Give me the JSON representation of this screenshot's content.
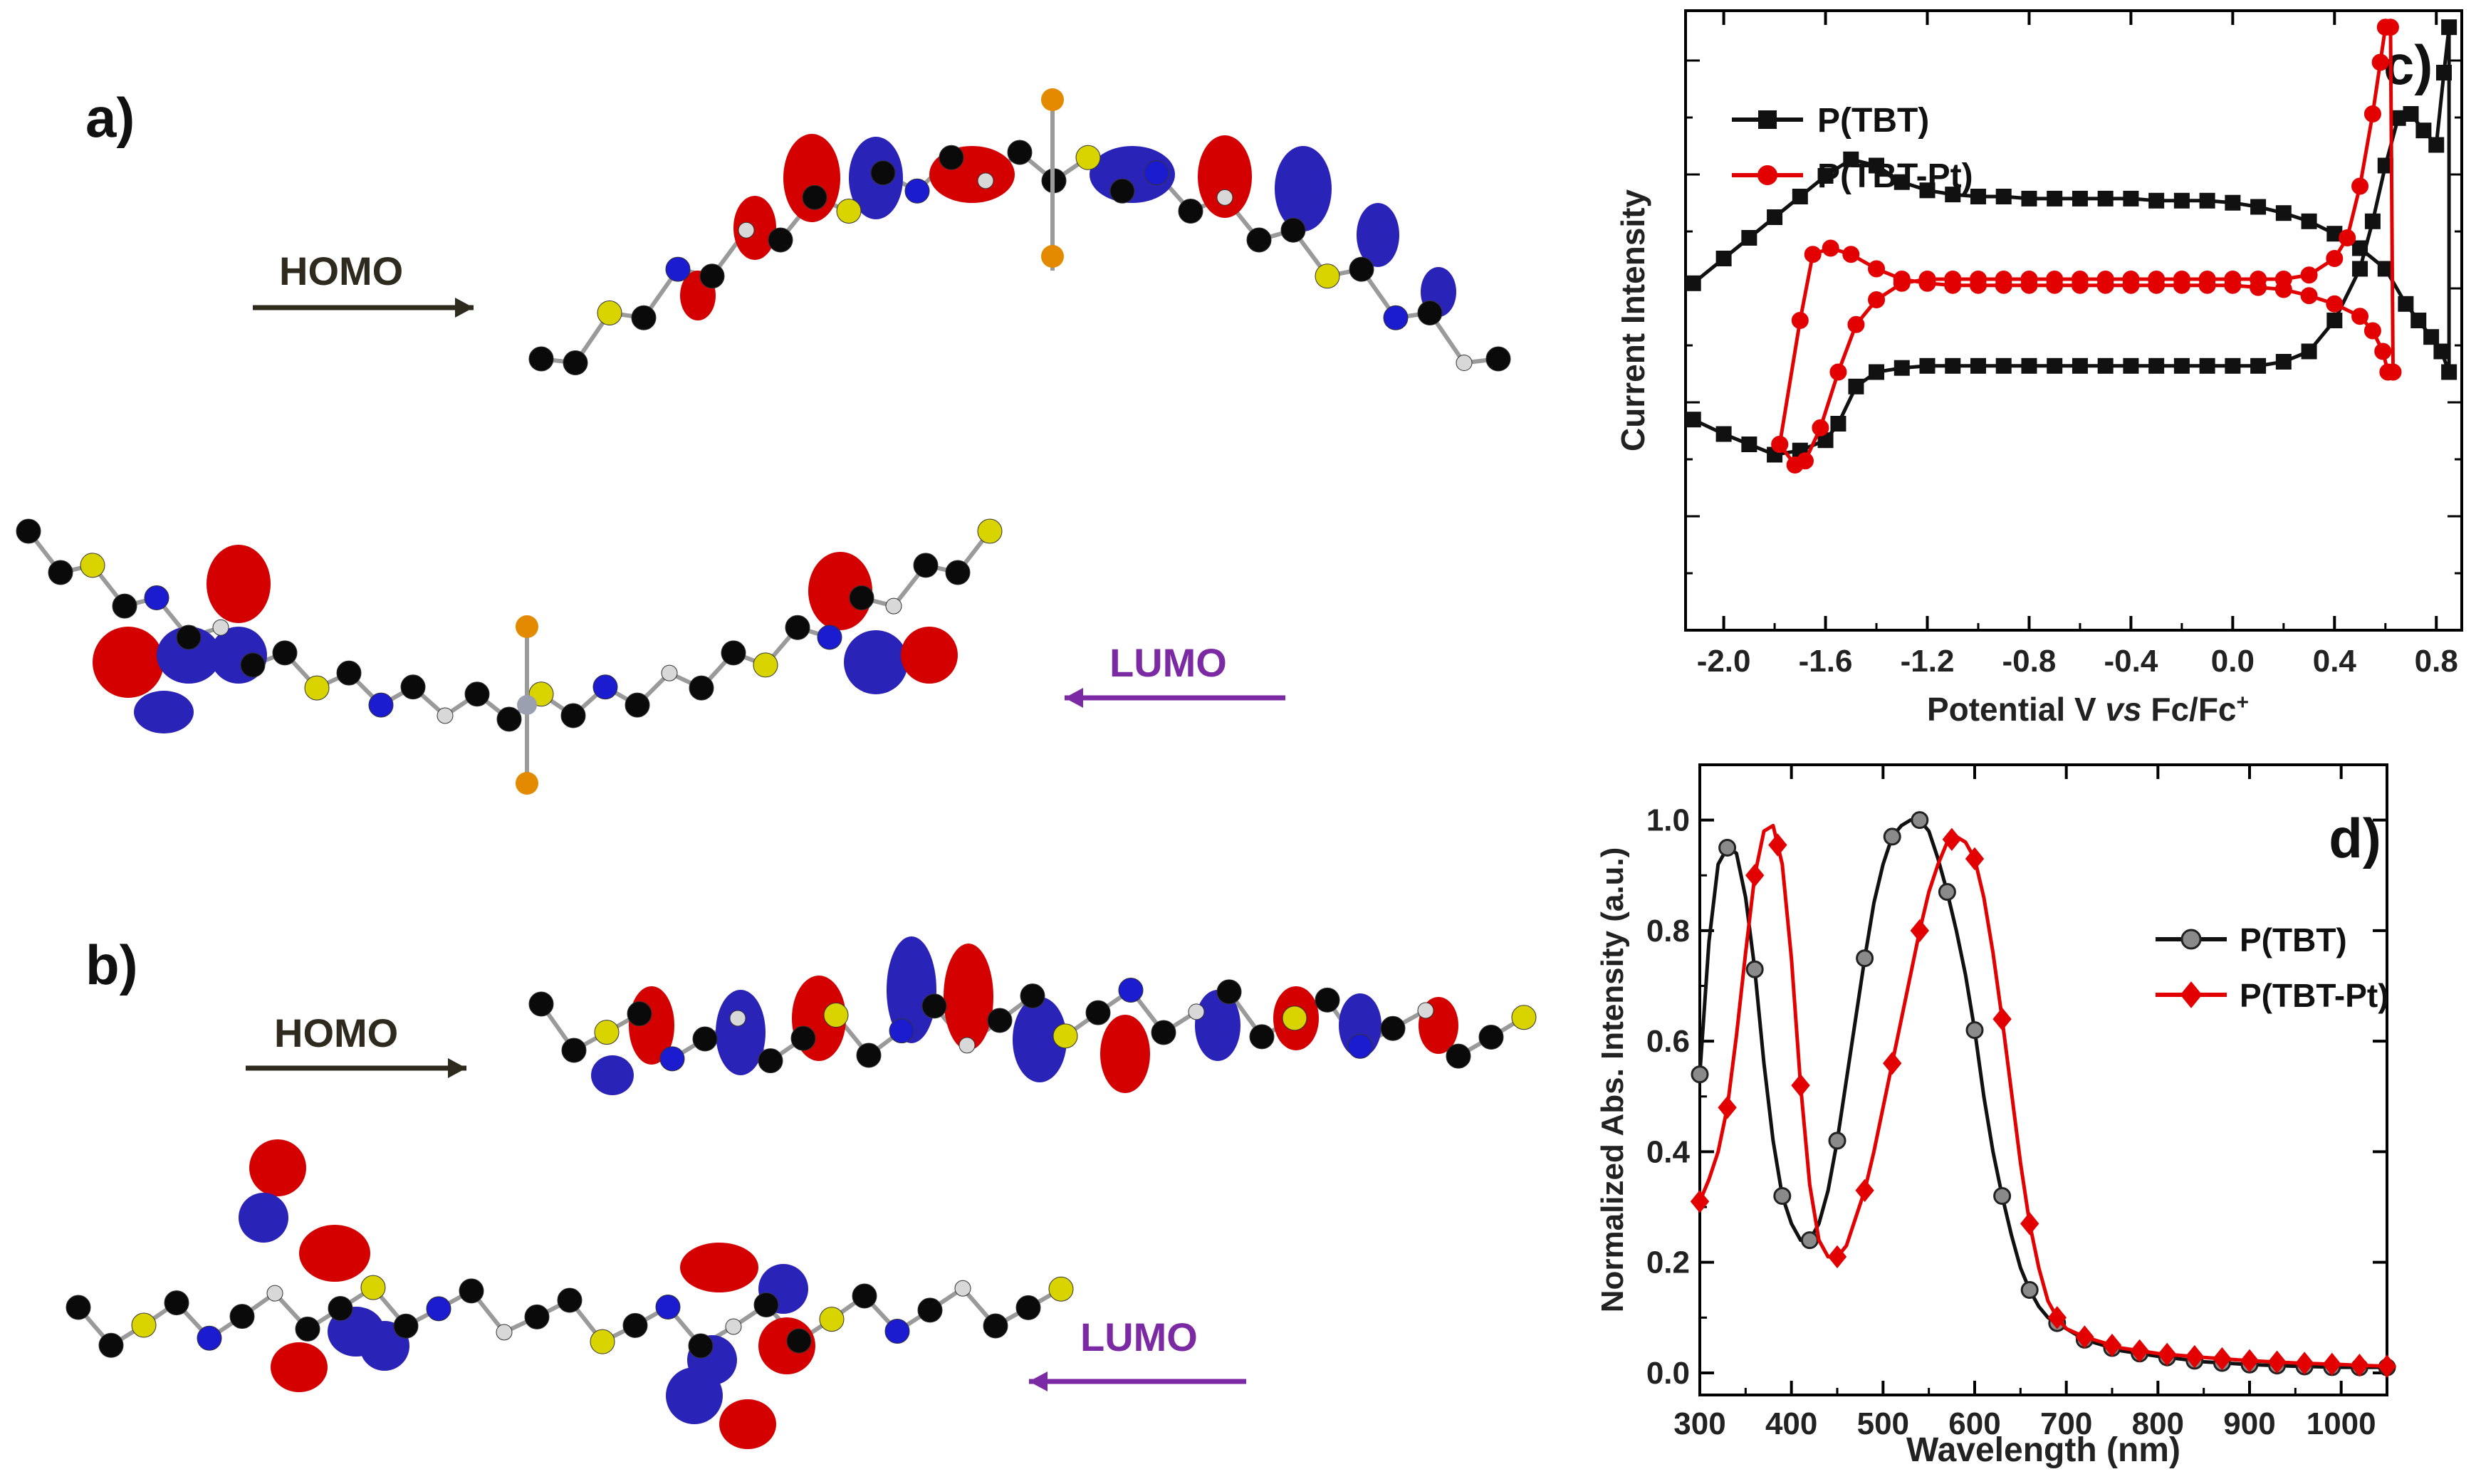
{
  "panels": {
    "a": "a)",
    "b": "b)",
    "c": "c)",
    "d": "d)"
  },
  "orbitals": {
    "homo": "HOMO",
    "lumo": "LUMO",
    "homo_color": "#2e2a1e",
    "lumo_color": "#7b2aa3"
  },
  "colors": {
    "tbt": "#111111",
    "tbtpt": "#e30000",
    "lobe_red": "#d40000",
    "lobe_blue": "#2a23b8",
    "carbon": "#0a0a0a",
    "sulfur": "#d9d400",
    "nitrogen": "#1b1bd0",
    "phosphorus": "#e38a00",
    "hydrogen": "#d8d8d8"
  },
  "chart_data": [
    {
      "id": "cv",
      "type": "line",
      "title": "",
      "xlabel": "Potential V vs Fc/Fc+",
      "xlabel_parts": [
        "Potential V ",
        "vs",
        " Fc/Fc",
        "+"
      ],
      "ylabel": "Current Intensity",
      "xlim": [
        -2.15,
        0.9
      ],
      "ylim": [
        -1.8,
        1.2
      ],
      "xticks": [
        -2.0,
        -1.6,
        -1.2,
        -0.8,
        -0.4,
        0.0,
        0.4,
        0.8
      ],
      "xtick_labels": [
        "-2.0",
        "-1.6",
        "-1.2",
        "-0.8",
        "-0.4",
        "0.0",
        "0.4",
        "0.8"
      ],
      "y_tick_labels_shown": false,
      "legend": "top-left",
      "series": [
        {
          "name": "P(TBT)",
          "marker": "square",
          "x": [
            -2.12,
            -2.0,
            -1.9,
            -1.8,
            -1.7,
            -1.6,
            -1.55,
            -1.48,
            -1.4,
            -1.3,
            -1.2,
            -1.1,
            -1.0,
            -0.9,
            -0.8,
            -0.7,
            -0.6,
            -0.5,
            -0.4,
            -0.3,
            -0.2,
            -0.1,
            0.0,
            0.1,
            0.2,
            0.3,
            0.4,
            0.5,
            0.55,
            0.6,
            0.65,
            0.7,
            0.75,
            0.8,
            0.83,
            0.85,
            0.85,
            0.82,
            0.78,
            0.73,
            0.68,
            0.6,
            0.5,
            0.4,
            0.3,
            0.2,
            0.1,
            0.0,
            -0.1,
            -0.2,
            -0.3,
            -0.4,
            -0.5,
            -0.6,
            -0.7,
            -0.8,
            -0.9,
            -1.0,
            -1.1,
            -1.2,
            -1.3,
            -1.4,
            -1.5,
            -1.6,
            -1.7,
            -1.8,
            -1.9,
            -2.0,
            -2.12
          ],
          "y": [
            -0.78,
            -0.85,
            -0.9,
            -0.95,
            -0.93,
            -0.88,
            -0.8,
            -0.62,
            -0.55,
            -0.53,
            -0.52,
            -0.52,
            -0.52,
            -0.52,
            -0.52,
            -0.52,
            -0.52,
            -0.52,
            -0.52,
            -0.52,
            -0.52,
            -0.52,
            -0.52,
            -0.52,
            -0.5,
            -0.45,
            -0.3,
            -0.05,
            0.18,
            0.45,
            0.68,
            0.7,
            0.62,
            0.55,
            0.9,
            1.12,
            -0.55,
            -0.45,
            -0.38,
            -0.3,
            -0.22,
            -0.05,
            0.05,
            0.12,
            0.18,
            0.22,
            0.25,
            0.27,
            0.28,
            0.28,
            0.28,
            0.29,
            0.29,
            0.29,
            0.29,
            0.29,
            0.3,
            0.3,
            0.31,
            0.33,
            0.37,
            0.45,
            0.48,
            0.4,
            0.3,
            0.2,
            0.1,
            0.0,
            -0.12
          ]
        },
        {
          "name": "P(TBT-Pt)",
          "marker": "circle",
          "x": [
            -1.78,
            -1.72,
            -1.68,
            -1.62,
            -1.55,
            -1.48,
            -1.4,
            -1.3,
            -1.2,
            -1.1,
            -1.0,
            -0.9,
            -0.8,
            -0.7,
            -0.6,
            -0.5,
            -0.4,
            -0.3,
            -0.2,
            -0.1,
            0.0,
            0.1,
            0.2,
            0.3,
            0.4,
            0.45,
            0.5,
            0.55,
            0.58,
            0.6,
            0.62,
            0.63,
            0.61,
            0.59,
            0.55,
            0.5,
            0.4,
            0.3,
            0.2,
            0.1,
            0.0,
            -0.1,
            -0.2,
            -0.3,
            -0.4,
            -0.5,
            -0.6,
            -0.7,
            -0.8,
            -0.9,
            -1.0,
            -1.1,
            -1.2,
            -1.3,
            -1.4,
            -1.5,
            -1.58,
            -1.65,
            -1.7,
            -1.78
          ],
          "y": [
            -0.9,
            -1.0,
            -0.98,
            -0.82,
            -0.55,
            -0.32,
            -0.2,
            -0.12,
            -0.1,
            -0.1,
            -0.1,
            -0.1,
            -0.1,
            -0.1,
            -0.1,
            -0.1,
            -0.1,
            -0.1,
            -0.1,
            -0.1,
            -0.1,
            -0.1,
            -0.1,
            -0.08,
            0.0,
            0.1,
            0.35,
            0.7,
            0.95,
            1.12,
            1.12,
            -0.55,
            -0.55,
            -0.45,
            -0.35,
            -0.28,
            -0.22,
            -0.18,
            -0.15,
            -0.14,
            -0.13,
            -0.13,
            -0.13,
            -0.13,
            -0.13,
            -0.13,
            -0.13,
            -0.13,
            -0.13,
            -0.13,
            -0.13,
            -0.13,
            -0.12,
            -0.1,
            -0.05,
            0.02,
            0.05,
            0.02,
            -0.3,
            -0.9
          ]
        }
      ]
    },
    {
      "id": "abs",
      "type": "line",
      "title": "",
      "xlabel": "Wavelength (nm)",
      "ylabel": "Normalized Abs. Intensity (a.u.)",
      "xlim": [
        300,
        1050
      ],
      "ylim": [
        -0.04,
        1.1
      ],
      "xticks": [
        300,
        400,
        500,
        600,
        700,
        800,
        900,
        1000
      ],
      "xtick_labels": [
        "300",
        "400",
        "500",
        "600",
        "700",
        "800",
        "900",
        "1000"
      ],
      "yticks": [
        0.0,
        0.2,
        0.4,
        0.6,
        0.8,
        1.0
      ],
      "ytick_labels": [
        "0.0",
        "0.2",
        "0.4",
        "0.6",
        "0.8",
        "1.0"
      ],
      "legend": "center-right",
      "series": [
        {
          "name": "P(TBT)",
          "marker": "circle",
          "x": [
            300,
            310,
            320,
            330,
            340,
            350,
            360,
            370,
            380,
            390,
            400,
            410,
            420,
            430,
            440,
            450,
            460,
            470,
            480,
            490,
            500,
            510,
            520,
            530,
            540,
            550,
            560,
            570,
            580,
            590,
            600,
            610,
            620,
            630,
            640,
            650,
            660,
            670,
            680,
            690,
            700,
            720,
            740,
            760,
            780,
            800,
            850,
            900,
            950,
            1000,
            1050
          ],
          "y": [
            0.54,
            0.78,
            0.92,
            0.95,
            0.94,
            0.86,
            0.73,
            0.56,
            0.42,
            0.32,
            0.27,
            0.24,
            0.24,
            0.27,
            0.33,
            0.42,
            0.53,
            0.64,
            0.75,
            0.85,
            0.92,
            0.97,
            0.99,
            1.0,
            1.0,
            0.98,
            0.93,
            0.87,
            0.8,
            0.72,
            0.62,
            0.5,
            0.4,
            0.32,
            0.25,
            0.19,
            0.15,
            0.12,
            0.1,
            0.09,
            0.08,
            0.06,
            0.05,
            0.04,
            0.035,
            0.03,
            0.02,
            0.015,
            0.012,
            0.01,
            0.01
          ],
          "marker_x": [
            300,
            330,
            360,
            390,
            420,
            450,
            480,
            510,
            540,
            570,
            600,
            630,
            660,
            690,
            720,
            750,
            780,
            810,
            840,
            870,
            900,
            930,
            960,
            990,
            1020,
            1050
          ]
        },
        {
          "name": "P(TBT-Pt)",
          "marker": "diamond",
          "x": [
            300,
            310,
            320,
            330,
            340,
            350,
            360,
            370,
            380,
            390,
            400,
            410,
            420,
            430,
            440,
            450,
            460,
            470,
            480,
            490,
            500,
            510,
            520,
            530,
            540,
            550,
            560,
            570,
            580,
            590,
            600,
            610,
            620,
            630,
            640,
            650,
            660,
            670,
            680,
            690,
            700,
            720,
            740,
            760,
            780,
            800,
            850,
            900,
            950,
            1000,
            1050
          ],
          "y": [
            0.31,
            0.35,
            0.4,
            0.48,
            0.61,
            0.76,
            0.9,
            0.98,
            0.99,
            0.92,
            0.75,
            0.52,
            0.34,
            0.24,
            0.21,
            0.21,
            0.23,
            0.28,
            0.33,
            0.4,
            0.48,
            0.56,
            0.64,
            0.72,
            0.8,
            0.87,
            0.92,
            0.96,
            0.97,
            0.96,
            0.93,
            0.86,
            0.76,
            0.64,
            0.51,
            0.38,
            0.27,
            0.19,
            0.13,
            0.1,
            0.08,
            0.065,
            0.055,
            0.045,
            0.04,
            0.035,
            0.028,
            0.022,
            0.018,
            0.015,
            0.012
          ],
          "marker_x": [
            300,
            330,
            360,
            385,
            410,
            450,
            480,
            510,
            540,
            575,
            600,
            630,
            660,
            690,
            720,
            750,
            780,
            810,
            840,
            870,
            900,
            930,
            960,
            990,
            1020,
            1050
          ]
        }
      ]
    }
  ]
}
